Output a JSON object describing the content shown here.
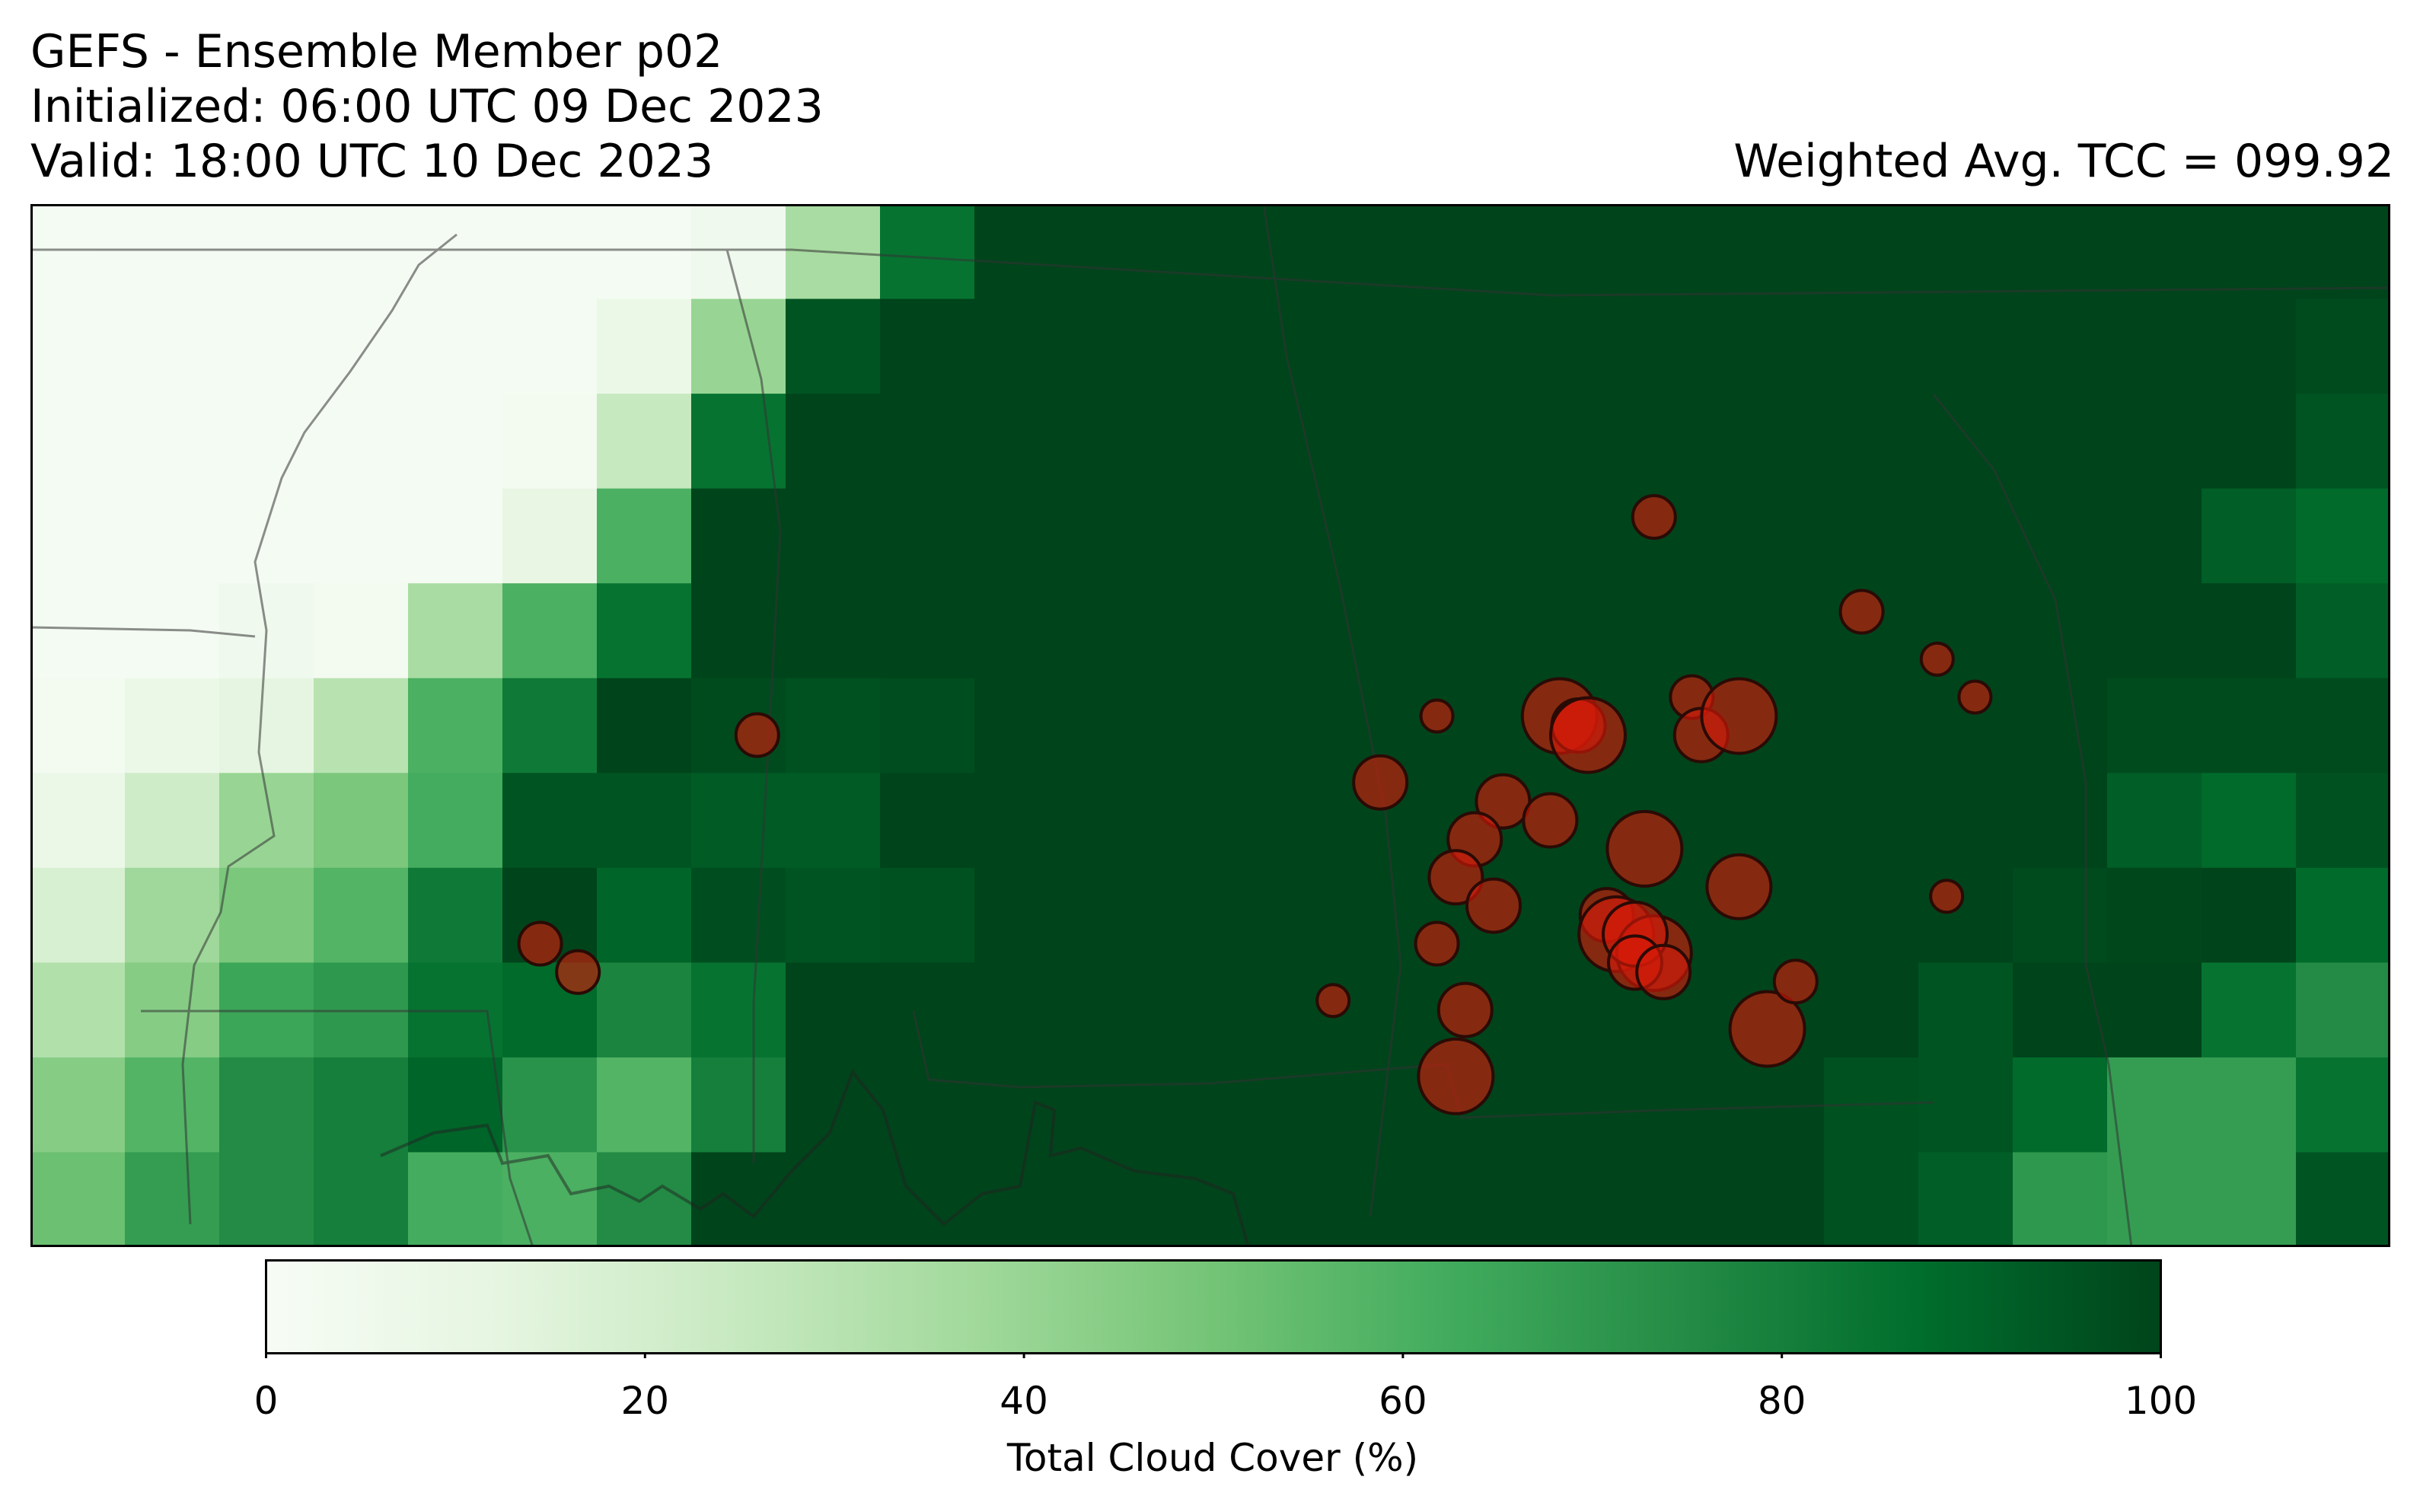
{
  "header": {
    "title_line1": "GEFS - Ensemble Member p02",
    "title_line2": "Initialized: 06:00 UTC 09 Dec 2023",
    "title_line3": "Valid: 18:00 UTC 10 Dec 2023",
    "summary": "Weighted Avg. TCC = 099.92"
  },
  "chart_data": {
    "type": "heatmap",
    "variable": "Total Cloud Cover (%)",
    "grid_rows": 11,
    "grid_cols": 25,
    "values": [
      [
        2,
        2,
        2,
        2,
        2,
        2,
        2,
        5,
        35,
        85,
        100,
        100,
        100,
        100,
        100,
        100,
        100,
        100,
        100,
        100,
        100,
        100,
        100,
        100,
        100
      ],
      [
        2,
        2,
        2,
        2,
        2,
        2,
        8,
        40,
        95,
        100,
        100,
        100,
        100,
        100,
        100,
        100,
        100,
        100,
        100,
        100,
        100,
        100,
        100,
        100,
        98
      ],
      [
        2,
        2,
        2,
        2,
        2,
        3,
        25,
        85,
        100,
        100,
        100,
        100,
        100,
        100,
        100,
        100,
        100,
        100,
        100,
        100,
        100,
        100,
        100,
        100,
        95
      ],
      [
        2,
        2,
        2,
        2,
        2,
        10,
        60,
        100,
        100,
        100,
        100,
        100,
        100,
        100,
        100,
        100,
        100,
        100,
        100,
        100,
        100,
        100,
        100,
        92,
        88
      ],
      [
        2,
        2,
        5,
        3,
        35,
        60,
        85,
        100,
        100,
        100,
        100,
        100,
        100,
        100,
        100,
        100,
        100,
        100,
        100,
        100,
        100,
        100,
        100,
        100,
        92
      ],
      [
        3,
        8,
        12,
        30,
        60,
        82,
        100,
        98,
        96,
        97,
        100,
        100,
        100,
        100,
        100,
        100,
        100,
        100,
        100,
        100,
        100,
        100,
        98,
        98,
        98
      ],
      [
        8,
        22,
        40,
        48,
        62,
        95,
        95,
        93,
        93,
        100,
        100,
        100,
        100,
        100,
        100,
        100,
        100,
        100,
        100,
        100,
        100,
        100,
        92,
        88,
        96
      ],
      [
        18,
        38,
        48,
        58,
        82,
        100,
        90,
        97,
        95,
        96,
        100,
        100,
        100,
        100,
        100,
        100,
        100,
        100,
        100,
        100,
        100,
        98,
        99,
        100,
        88
      ],
      [
        32,
        45,
        65,
        70,
        85,
        88,
        78,
        85,
        100,
        100,
        100,
        100,
        100,
        100,
        100,
        100,
        100,
        100,
        100,
        100,
        95,
        100,
        100,
        85,
        75
      ],
      [
        45,
        58,
        75,
        80,
        90,
        72,
        58,
        80,
        100,
        100,
        100,
        100,
        100,
        100,
        100,
        100,
        100,
        100,
        100,
        96,
        95,
        88,
        68,
        68,
        85
      ],
      [
        52,
        68,
        75,
        80,
        62,
        60,
        75,
        100,
        100,
        100,
        100,
        100,
        100,
        100,
        100,
        100,
        100,
        100,
        100,
        96,
        92,
        70,
        68,
        68,
        95
      ]
    ],
    "markers": [
      {
        "lon": 17.2,
        "lat": 7.7,
        "size": 2,
        "color": "#8a1a0a"
      },
      {
        "lon": 19.4,
        "lat": 6.7,
        "size": 2,
        "color": "#8a1a0a"
      },
      {
        "lon": 20.2,
        "lat": 6.2,
        "size": 1,
        "color": "#8a1a0a"
      },
      {
        "lon": 20.6,
        "lat": 5.8,
        "size": 1,
        "color": "#8a1a0a"
      },
      {
        "lon": 20.3,
        "lat": 3.7,
        "size": 1,
        "color": "#8a1a0a"
      },
      {
        "lon": 14.3,
        "lat": 4.9,
        "size": 3,
        "color": "#8a1a0a"
      },
      {
        "lon": 7.7,
        "lat": 5.4,
        "size": 2,
        "color": "#8a1a0a"
      },
      {
        "lon": 5.4,
        "lat": 3.2,
        "size": 2,
        "color": "#8a1a0a"
      },
      {
        "lon": 5.8,
        "lat": 2.9,
        "size": 2,
        "color": "#8a1a0a"
      },
      {
        "lon": 14.9,
        "lat": 5.6,
        "size": 1,
        "color": "#8a1a0a"
      },
      {
        "lon": 15.6,
        "lat": 4.7,
        "size": 3,
        "color": "#8a1a0a"
      },
      {
        "lon": 15.3,
        "lat": 4.3,
        "size": 3,
        "color": "#8a1a0a"
      },
      {
        "lon": 15.1,
        "lat": 3.9,
        "size": 3,
        "color": "#8a1a0a"
      },
      {
        "lon": 15.5,
        "lat": 3.6,
        "size": 3,
        "color": "#8a1a0a"
      },
      {
        "lon": 15.1,
        "lat": 1.8,
        "size": 5,
        "color": "#8a1a0a"
      },
      {
        "lon": 15.2,
        "lat": 2.5,
        "size": 3,
        "color": "#8a1a0a"
      },
      {
        "lon": 14.9,
        "lat": 3.2,
        "size": 2,
        "color": "#8a1a0a"
      },
      {
        "lon": 16.1,
        "lat": 4.5,
        "size": 3,
        "color": "#8a1a0a"
      },
      {
        "lon": 16.2,
        "lat": 5.6,
        "size": 5,
        "color": "#8a1a0a"
      },
      {
        "lon": 16.4,
        "lat": 5.5,
        "size": 3,
        "color": "#8a1a0a"
      },
      {
        "lon": 16.5,
        "lat": 5.4,
        "size": 5,
        "color": "#8a1a0a"
      },
      {
        "lon": 16.7,
        "lat": 3.5,
        "size": 3,
        "color": "#8a1a0a"
      },
      {
        "lon": 16.8,
        "lat": 3.3,
        "size": 5,
        "color": "#8a1a0a"
      },
      {
        "lon": 17.1,
        "lat": 4.2,
        "size": 5,
        "color": "#8a1a0a"
      },
      {
        "lon": 17.2,
        "lat": 3.1,
        "size": 5,
        "color": "#8a1a0a"
      },
      {
        "lon": 17.0,
        "lat": 3.3,
        "size": 4,
        "color": "#8a1a0a"
      },
      {
        "lon": 17.0,
        "lat": 3.0,
        "size": 3,
        "color": "#8a1a0a"
      },
      {
        "lon": 17.3,
        "lat": 2.9,
        "size": 3,
        "color": "#8a1a0a"
      },
      {
        "lon": 17.6,
        "lat": 5.8,
        "size": 2,
        "color": "#8a1a0a"
      },
      {
        "lon": 17.7,
        "lat": 5.4,
        "size": 3,
        "color": "#8a1a0a"
      },
      {
        "lon": 18.1,
        "lat": 3.8,
        "size": 4,
        "color": "#8a1a0a"
      },
      {
        "lon": 18.4,
        "lat": 2.3,
        "size": 5,
        "color": "#8a1a0a"
      },
      {
        "lon": 18.7,
        "lat": 2.8,
        "size": 2,
        "color": "#8a1a0a"
      },
      {
        "lon": 13.8,
        "lat": 2.6,
        "size": 1,
        "color": "#8a1a0a"
      },
      {
        "lon": 18.1,
        "lat": 5.6,
        "size": 5,
        "color": "#8a1a0a"
      }
    ],
    "colorbar": {
      "label": "Total Cloud Cover (%)",
      "ticks": [
        "0",
        "20",
        "40",
        "60",
        "80",
        "100"
      ],
      "range": [
        0,
        100
      ],
      "colormap": "Greens",
      "orientation": "horizontal"
    },
    "marker_fill_color": "#d61a0a",
    "marker_edge_color": "#2a0a05"
  }
}
